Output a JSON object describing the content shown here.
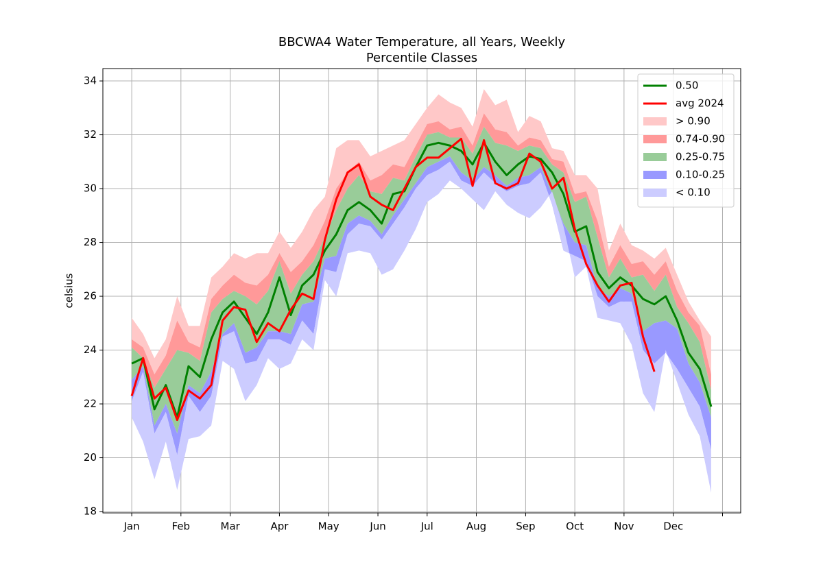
{
  "chart_data": {
    "type": "band-line",
    "title": [
      "BBCWA4 Water Temperature, all Years, Weekly",
      "Percentile Classes"
    ],
    "ylabel": "celsius",
    "x": [
      0,
      1,
      2,
      3,
      4,
      5,
      6,
      7,
      8,
      9,
      10,
      11,
      12,
      13,
      14,
      15,
      16,
      17,
      18,
      19,
      20,
      21,
      22,
      23,
      24,
      25,
      26,
      27,
      28,
      29,
      30,
      31,
      32,
      33,
      34,
      35,
      36,
      37,
      38,
      39,
      40,
      41,
      42,
      43,
      44,
      45,
      46,
      47,
      48,
      49,
      50,
      51
    ],
    "xlim": [
      -2.54,
      53.6
    ],
    "xticks": [
      {
        "value": 0,
        "label": "Jan"
      },
      {
        "value": 4.33,
        "label": "Feb"
      },
      {
        "value": 8.67,
        "label": "Mar"
      },
      {
        "value": 13,
        "label": "Apr"
      },
      {
        "value": 17.33,
        "label": "May"
      },
      {
        "value": 21.67,
        "label": "Jun"
      },
      {
        "value": 26,
        "label": "Jul"
      },
      {
        "value": 30.33,
        "label": "Aug"
      },
      {
        "value": 34.67,
        "label": "Sep"
      },
      {
        "value": 39,
        "label": "Oct"
      },
      {
        "value": 43.33,
        "label": "Nov"
      },
      {
        "value": 47.67,
        "label": "Dec"
      },
      {
        "value": 52,
        "label": null
      }
    ],
    "ylim": [
      17.95,
      34.46
    ],
    "yticks": [
      18,
      20,
      22,
      24,
      26,
      28,
      30,
      32,
      34
    ],
    "grid": true,
    "legend": "upper right",
    "min": [
      21.5,
      20.6,
      19.2,
      20.6,
      18.8,
      20.7,
      20.8,
      21.2,
      23.6,
      23.3,
      22.1,
      22.7,
      23.7,
      23.3,
      23.5,
      24.4,
      24.0,
      26.6,
      26.0,
      27.6,
      27.7,
      27.6,
      26.8,
      27.0,
      27.7,
      28.5,
      29.5,
      29.8,
      30.3,
      30.0,
      29.6,
      29.2,
      29.9,
      29.4,
      29.1,
      28.9,
      29.3,
      29.9,
      28.6,
      26.7,
      27.1,
      25.2,
      25.1,
      25.0,
      24.2,
      22.4,
      21.7,
      24.0,
      22.8,
      21.6,
      20.8,
      18.7
    ],
    "bands": [
      {
        "name": "> 0.90",
        "color": "#ffc8c8",
        "values": [
          25.2,
          24.6,
          23.7,
          24.4,
          26.0,
          24.9,
          24.9,
          26.7,
          27.1,
          27.6,
          27.4,
          27.6,
          27.6,
          28.4,
          27.8,
          28.4,
          29.2,
          29.7,
          31.5,
          31.8,
          31.8,
          31.2,
          31.4,
          31.6,
          31.8,
          32.4,
          33.0,
          33.5,
          33.2,
          33.0,
          32.3,
          33.7,
          33.1,
          33.3,
          32.1,
          32.7,
          32.5,
          31.5,
          31.4,
          30.5,
          30.5,
          30.0,
          27.7,
          28.7,
          27.9,
          27.7,
          27.4,
          27.8,
          26.8,
          25.8,
          25.1,
          24.5
        ]
      },
      {
        "name": "0.74-0.90",
        "color": "#ff9999",
        "values": [
          24.4,
          24.1,
          23.1,
          23.8,
          25.1,
          24.3,
          24.1,
          25.9,
          26.4,
          26.8,
          26.5,
          26.4,
          26.8,
          27.6,
          26.9,
          27.3,
          27.9,
          28.8,
          30.0,
          30.6,
          31.0,
          30.3,
          30.5,
          30.9,
          30.8,
          31.6,
          32.4,
          32.5,
          32.2,
          32.3,
          31.6,
          32.8,
          32.2,
          32.1,
          31.6,
          31.9,
          31.8,
          31.1,
          31.0,
          29.8,
          29.9,
          28.8,
          27.1,
          27.9,
          27.2,
          27.3,
          26.8,
          27.3,
          26.2,
          25.4,
          24.9,
          23.1
        ]
      },
      {
        "name": "0.25-0.75",
        "color": "#99cc99",
        "values": [
          24.1,
          23.7,
          22.6,
          23.3,
          24.0,
          23.9,
          23.6,
          25.4,
          25.9,
          26.2,
          26.0,
          25.7,
          26.2,
          27.3,
          26.1,
          26.8,
          27.3,
          28.2,
          29.2,
          30.0,
          30.5,
          29.9,
          29.8,
          30.4,
          30.3,
          31.2,
          32.0,
          32.1,
          31.9,
          31.9,
          31.3,
          32.3,
          31.7,
          31.6,
          31.4,
          31.6,
          31.5,
          30.9,
          30.6,
          29.5,
          29.7,
          28.2,
          26.7,
          27.4,
          26.7,
          26.8,
          26.2,
          26.8,
          25.6,
          25.0,
          24.3,
          22.5
        ]
      },
      {
        "name": "0.10-0.25",
        "color": "#9999ff",
        "values": [
          22.9,
          23.4,
          21.2,
          22.0,
          20.9,
          22.7,
          22.4,
          23.2,
          24.6,
          25.0,
          23.9,
          24.1,
          24.7,
          24.7,
          24.6,
          25.7,
          25.8,
          27.4,
          27.5,
          28.7,
          29.0,
          28.8,
          28.3,
          29.0,
          29.6,
          30.2,
          30.8,
          31.0,
          31.2,
          30.6,
          30.3,
          30.8,
          30.5,
          30.1,
          30.4,
          30.5,
          30.8,
          29.8,
          28.7,
          28.0,
          27.9,
          26.3,
          26.0,
          26.3,
          26.1,
          24.7,
          25.0,
          25.1,
          24.8,
          23.5,
          22.8,
          21.5
        ]
      },
      {
        "name": "< 0.10",
        "color": "#ccccff",
        "values": [
          22.1,
          23.2,
          20.9,
          21.7,
          20.1,
          22.3,
          21.7,
          22.3,
          24.5,
          24.7,
          23.5,
          23.6,
          24.4,
          24.4,
          24.2,
          25.1,
          24.6,
          27.0,
          26.9,
          28.3,
          28.7,
          28.6,
          28.1,
          28.7,
          29.3,
          30.0,
          30.5,
          30.7,
          31.0,
          30.3,
          30.1,
          30.6,
          30.2,
          29.9,
          30.1,
          30.2,
          30.6,
          29.4,
          27.7,
          27.5,
          27.3,
          26.0,
          25.6,
          25.8,
          25.8,
          24.0,
          23.5,
          23.9,
          23.3,
          22.6,
          21.9,
          20.3
        ]
      }
    ],
    "series": [
      {
        "name": "0.50",
        "color": "#008000",
        "values": [
          23.5,
          23.7,
          21.8,
          22.7,
          21.5,
          23.4,
          23.0,
          24.4,
          25.4,
          25.8,
          25.2,
          24.6,
          25.4,
          26.7,
          25.3,
          26.4,
          26.8,
          27.7,
          28.3,
          29.2,
          29.5,
          29.2,
          28.7,
          29.8,
          29.9,
          30.8,
          31.6,
          31.7,
          31.6,
          31.4,
          30.9,
          31.7,
          31.0,
          30.5,
          30.9,
          31.2,
          31.1,
          30.6,
          29.8,
          28.4,
          28.6,
          26.9,
          26.3,
          26.7,
          26.4,
          25.9,
          25.7,
          26.0,
          25.1,
          23.9,
          23.3,
          21.9
        ]
      },
      {
        "name": "avg 2024",
        "color": "#ff0000",
        "values": [
          22.3,
          23.7,
          22.2,
          22.6,
          21.4,
          22.5,
          22.2,
          22.7,
          25.1,
          25.6,
          25.5,
          24.3,
          25.0,
          24.7,
          25.5,
          26.1,
          25.9,
          28.1,
          29.6,
          30.6,
          30.9,
          29.7,
          29.4,
          29.2,
          30.0,
          30.8,
          31.15,
          31.15,
          31.5,
          31.85,
          30.1,
          31.8,
          30.2,
          30.0,
          30.2,
          31.3,
          31.0,
          30.0,
          30.4,
          28.5,
          27.2,
          26.4,
          25.8,
          26.4,
          26.5,
          24.5,
          23.2,
          null,
          null,
          null,
          null,
          null
        ]
      }
    ]
  }
}
